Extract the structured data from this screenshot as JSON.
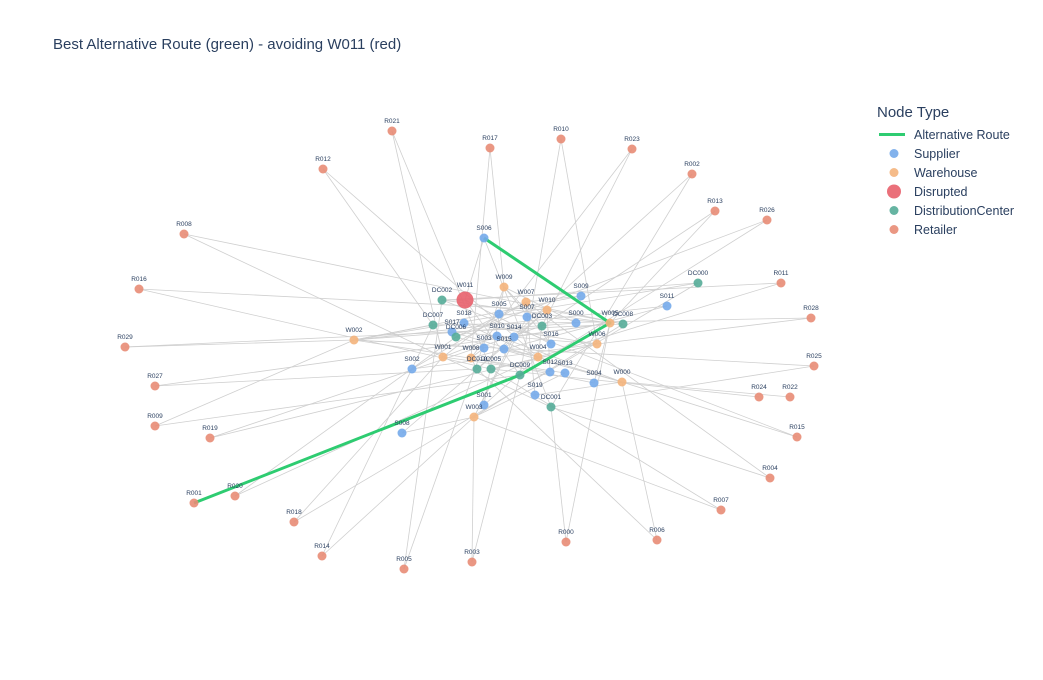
{
  "title": "Best Alternative Route (green) - avoiding W011 (red)",
  "legend": {
    "title": "Node Type",
    "items": [
      {
        "label": "Alternative Route",
        "kind": "line",
        "color": "#2ecc71"
      },
      {
        "label": "Supplier",
        "kind": "dot",
        "color": "#74aaea"
      },
      {
        "label": "Warehouse",
        "kind": "dot",
        "color": "#f4b47c"
      },
      {
        "label": "Disrupted",
        "kind": "bigdot",
        "color": "#e8606c"
      },
      {
        "label": "DistributionCenter",
        "kind": "dot",
        "color": "#55ac98"
      },
      {
        "label": "Retailer",
        "kind": "dot",
        "color": "#e88c76"
      }
    ]
  },
  "colors": {
    "Supplier": "#74aaea",
    "Warehouse": "#f4b47c",
    "Disrupted": "#e8606c",
    "DistributionCenter": "#55ac98",
    "Retailer": "#e88c76",
    "route": "#2ecc71",
    "edge": "#cfcfcf"
  },
  "nodes": [
    {
      "id": "R021",
      "type": "Retailer"
    },
    {
      "id": "R017",
      "type": "Retailer"
    },
    {
      "id": "R010",
      "type": "Retailer"
    },
    {
      "id": "R023",
      "type": "Retailer"
    },
    {
      "id": "R012",
      "type": "Retailer"
    },
    {
      "id": "R002",
      "type": "Retailer"
    },
    {
      "id": "R013",
      "type": "Retailer"
    },
    {
      "id": "R026",
      "type": "Retailer"
    },
    {
      "id": "R008",
      "type": "Retailer"
    },
    {
      "id": "S006",
      "type": "Supplier"
    },
    {
      "id": "DC000",
      "type": "DistributionCenter"
    },
    {
      "id": "R011",
      "type": "Retailer"
    },
    {
      "id": "R016",
      "type": "Retailer"
    },
    {
      "id": "W009",
      "type": "Warehouse"
    },
    {
      "id": "W011",
      "type": "Disrupted"
    },
    {
      "id": "DC002",
      "type": "DistributionCenter"
    },
    {
      "id": "W007",
      "type": "Warehouse"
    },
    {
      "id": "S009",
      "type": "Supplier"
    },
    {
      "id": "S011",
      "type": "Supplier"
    },
    {
      "id": "R028",
      "type": "Retailer"
    },
    {
      "id": "S005",
      "type": "Supplier"
    },
    {
      "id": "W010",
      "type": "Warehouse"
    },
    {
      "id": "S018",
      "type": "Supplier"
    },
    {
      "id": "S007",
      "type": "Supplier"
    },
    {
      "id": "DC003",
      "type": "DistributionCenter"
    },
    {
      "id": "S000",
      "type": "Supplier"
    },
    {
      "id": "W005",
      "type": "Warehouse"
    },
    {
      "id": "DC008",
      "type": "DistributionCenter"
    },
    {
      "id": "DC007",
      "type": "DistributionCenter"
    },
    {
      "id": "S017",
      "type": "Supplier"
    },
    {
      "id": "S010",
      "type": "Supplier"
    },
    {
      "id": "S014",
      "type": "Supplier"
    },
    {
      "id": "DC006",
      "type": "DistributionCenter"
    },
    {
      "id": "W002",
      "type": "Warehouse"
    },
    {
      "id": "R029",
      "type": "Retailer"
    },
    {
      "id": "S003",
      "type": "Supplier"
    },
    {
      "id": "S015",
      "type": "Supplier"
    },
    {
      "id": "S016",
      "type": "Supplier"
    },
    {
      "id": "W006",
      "type": "Warehouse"
    },
    {
      "id": "W008",
      "type": "Warehouse"
    },
    {
      "id": "W001",
      "type": "Warehouse"
    },
    {
      "id": "W004",
      "type": "Warehouse"
    },
    {
      "id": "R025",
      "type": "Retailer"
    },
    {
      "id": "S002",
      "type": "Supplier"
    },
    {
      "id": "DC010",
      "type": "DistributionCenter"
    },
    {
      "id": "DC005",
      "type": "DistributionCenter"
    },
    {
      "id": "DC009",
      "type": "DistributionCenter"
    },
    {
      "id": "S012",
      "type": "Supplier"
    },
    {
      "id": "S013",
      "type": "Supplier"
    },
    {
      "id": "S004",
      "type": "Supplier"
    },
    {
      "id": "W000",
      "type": "Warehouse"
    },
    {
      "id": "R027",
      "type": "Retailer"
    },
    {
      "id": "S019",
      "type": "Supplier"
    },
    {
      "id": "R024",
      "type": "Retailer"
    },
    {
      "id": "R022",
      "type": "Retailer"
    },
    {
      "id": "S001",
      "type": "Supplier"
    },
    {
      "id": "DC001",
      "type": "DistributionCenter"
    },
    {
      "id": "W003",
      "type": "Warehouse"
    },
    {
      "id": "R009",
      "type": "Retailer"
    },
    {
      "id": "S008",
      "type": "Supplier"
    },
    {
      "id": "R019",
      "type": "Retailer"
    },
    {
      "id": "R015",
      "type": "Retailer"
    },
    {
      "id": "R004",
      "type": "Retailer"
    },
    {
      "id": "R001",
      "type": "Retailer"
    },
    {
      "id": "R020",
      "type": "Retailer"
    },
    {
      "id": "R007",
      "type": "Retailer"
    },
    {
      "id": "R018",
      "type": "Retailer"
    },
    {
      "id": "R000",
      "type": "Retailer"
    },
    {
      "id": "R006",
      "type": "Retailer"
    },
    {
      "id": "R014",
      "type": "Retailer"
    },
    {
      "id": "R003",
      "type": "Retailer"
    },
    {
      "id": "R005",
      "type": "Retailer"
    }
  ],
  "edges": [
    [
      "R021",
      "W001"
    ],
    [
      "R021",
      "DC005"
    ],
    [
      "R017",
      "W009"
    ],
    [
      "R017",
      "W008"
    ],
    [
      "R010",
      "DC009"
    ],
    [
      "R010",
      "W006"
    ],
    [
      "R023",
      "W008"
    ],
    [
      "R023",
      "DC003"
    ],
    [
      "R012",
      "DC007"
    ],
    [
      "R012",
      "W004"
    ],
    [
      "R002",
      "DC001"
    ],
    [
      "R002",
      "DC010"
    ],
    [
      "R013",
      "W005"
    ],
    [
      "R013",
      "DC003"
    ],
    [
      "R026",
      "DC009"
    ],
    [
      "R026",
      "DC006"
    ],
    [
      "R008",
      "W001"
    ],
    [
      "R008",
      "DC008"
    ],
    [
      "R011",
      "DC002"
    ],
    [
      "R011",
      "W004"
    ],
    [
      "R016",
      "DC005"
    ],
    [
      "R016",
      "W010"
    ],
    [
      "R028",
      "W006"
    ],
    [
      "R028",
      "DC007"
    ],
    [
      "R029",
      "W002"
    ],
    [
      "R029",
      "DC008"
    ],
    [
      "R025",
      "DC001"
    ],
    [
      "R025",
      "W002"
    ],
    [
      "R027",
      "W005"
    ],
    [
      "R027",
      "DC010"
    ],
    [
      "R024",
      "DC005"
    ],
    [
      "R022",
      "W000"
    ],
    [
      "R009",
      "W002"
    ],
    [
      "R009",
      "DC009"
    ],
    [
      "R019",
      "DC003"
    ],
    [
      "R019",
      "W006"
    ],
    [
      "R015",
      "DC002"
    ],
    [
      "R015",
      "W000"
    ],
    [
      "R004",
      "DC001"
    ],
    [
      "R004",
      "W007"
    ],
    [
      "R020",
      "W004"
    ],
    [
      "R020",
      "DC006"
    ],
    [
      "R007",
      "DC005"
    ],
    [
      "R007",
      "W003"
    ],
    [
      "R018",
      "W001"
    ],
    [
      "R018",
      "DC000"
    ],
    [
      "R000",
      "DC001"
    ],
    [
      "R000",
      "W005"
    ],
    [
      "R006",
      "W000"
    ],
    [
      "R006",
      "DC010"
    ],
    [
      "R014",
      "DC007"
    ],
    [
      "R014",
      "W003"
    ],
    [
      "R003",
      "W003"
    ],
    [
      "R003",
      "DC009"
    ],
    [
      "R005",
      "DC002"
    ],
    [
      "R005",
      "W009"
    ],
    [
      "R001",
      "DC009"
    ],
    [
      "S006",
      "W011"
    ],
    [
      "S006",
      "W005"
    ],
    [
      "S006",
      "DC001"
    ],
    [
      "S009",
      "W007"
    ],
    [
      "S009",
      "W002"
    ],
    [
      "S011",
      "W002"
    ],
    [
      "S011",
      "W008"
    ],
    [
      "S005",
      "W001"
    ],
    [
      "S005",
      "W005"
    ],
    [
      "S018",
      "W006"
    ],
    [
      "S018",
      "W004"
    ],
    [
      "S007",
      "W010"
    ],
    [
      "S007",
      "W003"
    ],
    [
      "S000",
      "W002"
    ],
    [
      "S000",
      "W009"
    ],
    [
      "S017",
      "W006"
    ],
    [
      "S017",
      "W000"
    ],
    [
      "S010",
      "W000"
    ],
    [
      "S010",
      "W001"
    ],
    [
      "S014",
      "W003"
    ],
    [
      "S014",
      "W005"
    ],
    [
      "S003",
      "W008"
    ],
    [
      "S003",
      "W002"
    ],
    [
      "S015",
      "W004"
    ],
    [
      "S015",
      "W010"
    ],
    [
      "S016",
      "W009"
    ],
    [
      "S016",
      "W011"
    ],
    [
      "S002",
      "W007"
    ],
    [
      "S002",
      "W006"
    ],
    [
      "S012",
      "W001"
    ],
    [
      "S012",
      "W010"
    ],
    [
      "S013",
      "W002"
    ],
    [
      "S013",
      "W003"
    ],
    [
      "S004",
      "W008"
    ],
    [
      "S004",
      "W005"
    ],
    [
      "S019",
      "W007"
    ],
    [
      "S019",
      "W000"
    ],
    [
      "S001",
      "W009"
    ],
    [
      "S001",
      "W004"
    ],
    [
      "S008",
      "W010"
    ],
    [
      "S008",
      "W003"
    ],
    [
      "W011",
      "DC002"
    ],
    [
      "W011",
      "DC000"
    ],
    [
      "W011",
      "DC009"
    ],
    [
      "W009",
      "DC003"
    ],
    [
      "W007",
      "DC006"
    ],
    [
      "W010",
      "DC008"
    ],
    [
      "W005",
      "DC009"
    ],
    [
      "W005",
      "DC002"
    ],
    [
      "W002",
      "DC007"
    ],
    [
      "W002",
      "DC000"
    ],
    [
      "W006",
      "DC005"
    ],
    [
      "W008",
      "DC010"
    ],
    [
      "W001",
      "DC001"
    ],
    [
      "W004",
      "DC003"
    ],
    [
      "W000",
      "DC006"
    ],
    [
      "W003",
      "DC008"
    ]
  ],
  "route": [
    "S006",
    "W005",
    "DC009",
    "R001"
  ]
}
